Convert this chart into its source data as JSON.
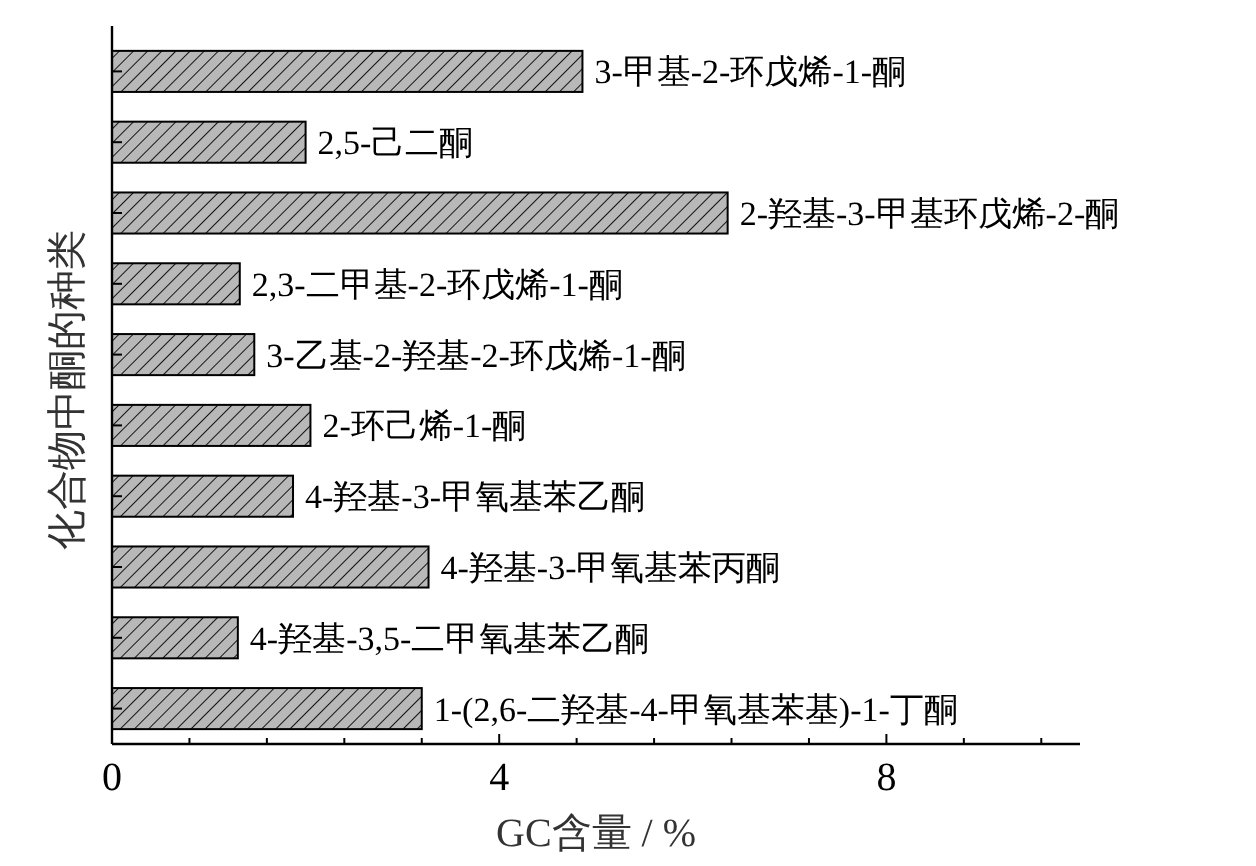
{
  "chart_data": {
    "type": "bar",
    "orientation": "horizontal",
    "categories": [
      "3-甲基-2-环戊烯-1-酮",
      "2,5-己二酮",
      "2-羟基-3-甲基环戊烯-2-酮",
      "2,3-二甲基-2-环戊烯-1-酮",
      "3-乙基-2-羟基-2-环戊烯-1-酮",
      "2-环己烯-1-酮",
      "4-羟基-3-甲氧基苯乙酮",
      "4-羟基-3-甲氧基苯丙酮",
      "4-羟基-3,5-二甲氧基苯乙酮",
      "1-(2,6-二羟基-4-甲氧基苯基)-1-丁酮"
    ],
    "values": [
      4.86,
      2.0,
      6.36,
      1.32,
      1.47,
      2.05,
      1.87,
      3.27,
      1.3,
      3.2
    ],
    "color": "#b8b8b8",
    "xlabel": "GC含量 / %",
    "ylabel": "化合物中酮的种类",
    "xlim": [
      0,
      10
    ],
    "xticks": [
      0,
      {
        "value": 0.8,
        "label": null
      },
      {
        "value": 1.6,
        "label": null
      },
      {
        "value": 2.4,
        "label": null
      },
      {
        "value": 3.2,
        "label": null
      },
      4,
      {
        "value": 4.8,
        "label": null
      },
      {
        "value": 5.6,
        "label": null
      },
      {
        "value": 6.4,
        "label": null
      },
      {
        "value": 7.2,
        "label": null
      },
      8,
      {
        "value": 8.8,
        "label": null
      },
      {
        "value": 9.6,
        "label": null
      }
    ],
    "grid": false
  }
}
